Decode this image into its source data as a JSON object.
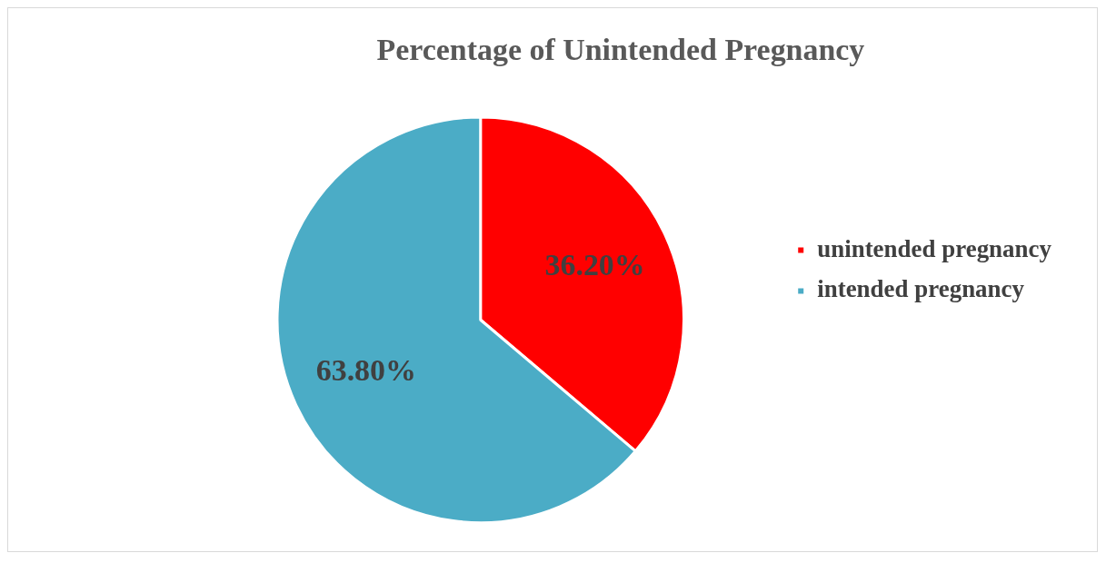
{
  "chart_data": {
    "type": "pie",
    "title": "Percentage of Unintended Pregnancy",
    "categories": [
      "unintended pregnancy",
      "intended pregnancy"
    ],
    "values": [
      36.2,
      63.8
    ],
    "colors": [
      "#ff0000",
      "#4bacc6"
    ],
    "value_labels": [
      "36.20%",
      "63.80%"
    ],
    "legend": "right"
  }
}
